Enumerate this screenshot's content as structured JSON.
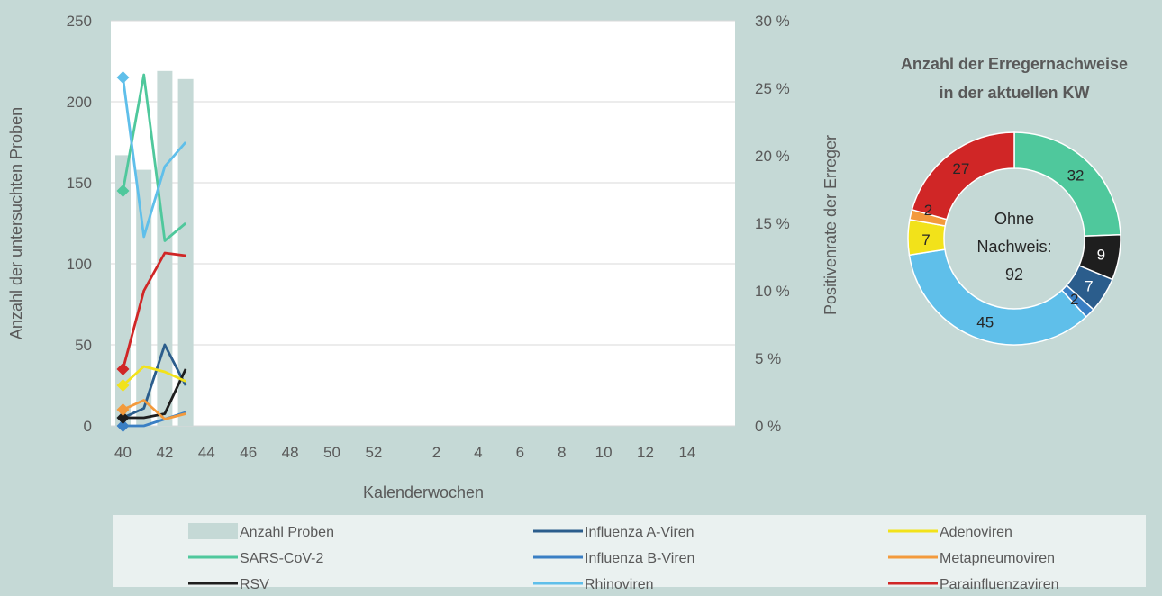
{
  "chart_data": [
    {
      "type": "bar+line",
      "xlabel": "Kalenderwochen",
      "ylabel_left": "Anzahl der untersuchten Proben",
      "ylabel_right": "Positivenrate der Erreger",
      "x_ticks": [
        "40",
        "42",
        "44",
        "46",
        "48",
        "50",
        "52",
        "2",
        "4",
        "6",
        "8",
        "10",
        "12",
        "14"
      ],
      "left_axis": {
        "min": 0,
        "max": 250,
        "ticks": [
          "0",
          "50",
          "100",
          "150",
          "200",
          "250"
        ]
      },
      "right_axis": {
        "min": 0,
        "max": 30,
        "ticks": [
          "0 %",
          "5 %",
          "10 %",
          "15 %",
          "20 %",
          "25 %",
          "30 %"
        ]
      },
      "weeks": [
        40,
        41,
        42,
        43
      ],
      "bars": {
        "name": "Anzahl Proben",
        "color": "#c5d9d6",
        "values": [
          167,
          158,
          219,
          214
        ]
      },
      "series": [
        {
          "name": "SARS-CoV-2",
          "color": "#4fc89c",
          "values": [
            17.4,
            26.0,
            13.7,
            15.0
          ]
        },
        {
          "name": "Influenza A-Viren",
          "color": "#2b5d8c",
          "values": [
            0.6,
            1.3,
            6.0,
            3.0
          ]
        },
        {
          "name": "Influenza B-Viren",
          "color": "#3a7fc4",
          "values": [
            0.0,
            0.0,
            0.5,
            1.0
          ]
        },
        {
          "name": "RSV",
          "color": "#1e1e1e",
          "values": [
            0.6,
            0.6,
            0.9,
            4.2
          ]
        },
        {
          "name": "Adenoviren",
          "color": "#f2e21a",
          "values": [
            3.0,
            4.4,
            4.0,
            3.3
          ]
        },
        {
          "name": "Metapneumoviren",
          "color": "#f39a3c",
          "values": [
            1.2,
            1.9,
            0.5,
            0.9
          ]
        },
        {
          "name": "Rhinoviren",
          "color": "#5fbfea",
          "values": [
            25.8,
            14.0,
            19.2,
            21.0
          ]
        },
        {
          "name": "Parainfluenzaviren",
          "color": "#d02626",
          "values": [
            4.2,
            10.0,
            12.8,
            12.6
          ]
        }
      ]
    },
    {
      "type": "pie",
      "title_line1": "Anzahl der Erregernachweise",
      "title_line2": "in der aktuellen KW",
      "center_line1": "Ohne",
      "center_line2": "Nachweis:",
      "center_value": "92",
      "slices": [
        {
          "name": "SARS-CoV-2",
          "value": 32,
          "label": "32",
          "color": "#4fc89c"
        },
        {
          "name": "RSV",
          "value": 9,
          "label": "9",
          "color": "#1e1e1e"
        },
        {
          "name": "Influenza A-Viren",
          "value": 7,
          "label": "7",
          "color": "#2b5d8c"
        },
        {
          "name": "Influenza B-Viren",
          "value": 2,
          "label": "2",
          "color": "#3a7fc4"
        },
        {
          "name": "Rhinoviren",
          "value": 45,
          "label": "45",
          "color": "#5fbfea"
        },
        {
          "name": "Adenoviren",
          "value": 7,
          "label": "7",
          "color": "#f2e21a"
        },
        {
          "name": "Metapneumoviren",
          "value": 2,
          "label": "2",
          "color": "#f39a3c"
        },
        {
          "name": "Parainfluenzaviren",
          "value": 27,
          "label": "27",
          "color": "#d02626"
        }
      ]
    }
  ],
  "legend": {
    "items": [
      {
        "label": "Anzahl Proben",
        "color": "#c5d9d6",
        "kind": "bar"
      },
      {
        "label": "Influenza A-Viren",
        "color": "#2b5d8c",
        "kind": "line"
      },
      {
        "label": "Adenoviren",
        "color": "#f2e21a",
        "kind": "line"
      },
      {
        "label": "SARS-CoV-2",
        "color": "#4fc89c",
        "kind": "line"
      },
      {
        "label": "Influenza B-Viren",
        "color": "#3a7fc4",
        "kind": "line"
      },
      {
        "label": "Metapneumoviren",
        "color": "#f39a3c",
        "kind": "line"
      },
      {
        "label": "RSV",
        "color": "#1e1e1e",
        "kind": "line"
      },
      {
        "label": "Rhinoviren",
        "color": "#5fbfea",
        "kind": "line"
      },
      {
        "label": "Parainfluenzaviren",
        "color": "#d02626",
        "kind": "line"
      }
    ]
  }
}
